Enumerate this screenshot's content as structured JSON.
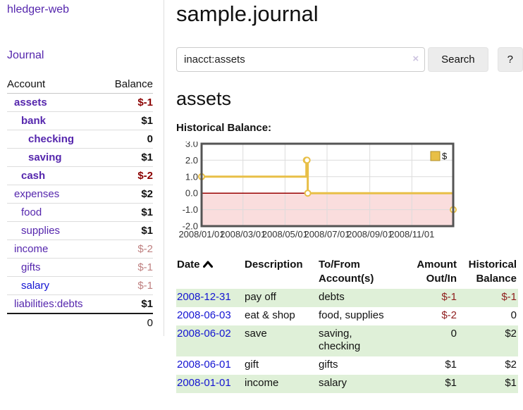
{
  "sidebar": {
    "brand": "hledger-web",
    "journal_label": "Journal",
    "accounts_header": {
      "account": "Account",
      "balance": "Balance"
    },
    "accounts": [
      {
        "name": "assets",
        "indent": 1,
        "bold": true,
        "balance": "$-1",
        "balance_style": "neg-strong",
        "link_style": "purple"
      },
      {
        "name": "bank",
        "indent": 2,
        "bold": true,
        "balance": "$1",
        "balance_style": "",
        "link_style": "purple"
      },
      {
        "name": "checking",
        "indent": 3,
        "bold": true,
        "balance": "0",
        "balance_style": "",
        "link_style": "purple"
      },
      {
        "name": "saving",
        "indent": 3,
        "bold": true,
        "balance": "$1",
        "balance_style": "",
        "link_style": "purple"
      },
      {
        "name": "cash",
        "indent": 2,
        "bold": true,
        "balance": "$-2",
        "balance_style": "neg-strong",
        "link_style": "purple"
      },
      {
        "name": "expenses",
        "indent": 1,
        "bold": false,
        "balance": "$2",
        "balance_style": "",
        "link_style": "purple"
      },
      {
        "name": "food",
        "indent": 2,
        "bold": false,
        "balance": "$1",
        "balance_style": "",
        "link_style": "purple"
      },
      {
        "name": "supplies",
        "indent": 2,
        "bold": false,
        "balance": "$1",
        "balance_style": "",
        "link_style": "purple"
      },
      {
        "name": "income",
        "indent": 1,
        "bold": false,
        "balance": "$-2",
        "balance_style": "neg-soft",
        "link_style": "purple"
      },
      {
        "name": "gifts",
        "indent": 2,
        "bold": false,
        "balance": "$-1",
        "balance_style": "neg-soft",
        "link_style": "purple"
      },
      {
        "name": "salary",
        "indent": 2,
        "bold": false,
        "balance": "$-1",
        "balance_style": "neg-soft",
        "link_style": "blue"
      },
      {
        "name": "liabilities:debts",
        "indent": 1,
        "bold": false,
        "balance": "$1",
        "balance_style": "",
        "link_style": "purple"
      }
    ],
    "total": "0"
  },
  "main": {
    "title": "sample.journal",
    "search": {
      "value": "inacct:assets",
      "clear_icon": "×",
      "button_label": "Search",
      "help_label": "?"
    },
    "account_heading": "assets",
    "chart_title": "Historical Balance:"
  },
  "chart_data": {
    "type": "line",
    "style": "step-after",
    "title": "Historical Balance",
    "series": [
      {
        "name": "$",
        "points": [
          [
            "2008-01-01",
            1
          ],
          [
            "2008-06-01",
            2
          ],
          [
            "2008-06-02",
            2
          ],
          [
            "2008-06-03",
            0
          ],
          [
            "2008-12-31",
            -1
          ]
        ]
      }
    ],
    "x_range": [
      "2008-01-01",
      "2008-12-31"
    ],
    "x_ticks": [
      "2008/01/01",
      "2008/03/01",
      "2008/05/01",
      "2008/07/01",
      "2008/09/01",
      "2008/11/01"
    ],
    "y_ticks": [
      "3.0",
      "2.0",
      "1.0",
      "0.0",
      "-1.0",
      "-2.0"
    ],
    "ylim": [
      -2,
      3
    ],
    "grid": true,
    "legend_position": "top-right",
    "legend": [
      {
        "label": "$",
        "color": "#e8bf47"
      }
    ],
    "line_color": "#e8bf47",
    "marker_fill": "#ffffff",
    "zero_line_color": "#990000",
    "negative_region_color": "#fadddd",
    "gridline_color": "#dcdcdc",
    "border_color": "#545454",
    "label_color": "#333333"
  },
  "register": {
    "headers": {
      "date": "Date",
      "description": "Description",
      "accounts": "To/From Account(s)",
      "amount": "Amount Out/In",
      "balance": "Historical Balance"
    },
    "rows": [
      {
        "date": "2008-12-31",
        "description": "pay off",
        "accounts": [
          "debts"
        ],
        "amount": "$-1",
        "amount_neg": true,
        "balance": "$-1",
        "balance_neg": true,
        "shaded": true
      },
      {
        "date": "2008-06-03",
        "description": "eat & shop",
        "accounts": [
          "food, supplies"
        ],
        "amount": "$-2",
        "amount_neg": true,
        "balance": "0",
        "balance_neg": false,
        "shaded": false
      },
      {
        "date": "2008-06-02",
        "description": "save",
        "accounts": [
          "saving,",
          "checking"
        ],
        "amount": "0",
        "amount_neg": false,
        "balance": "$2",
        "balance_neg": false,
        "shaded": true
      },
      {
        "date": "2008-06-01",
        "description": "gift",
        "accounts": [
          "gifts"
        ],
        "amount": "$1",
        "amount_neg": false,
        "balance": "$2",
        "balance_neg": false,
        "shaded": false
      },
      {
        "date": "2008-01-01",
        "description": "income",
        "accounts": [
          "salary"
        ],
        "amount": "$1",
        "amount_neg": false,
        "balance": "$1",
        "balance_neg": false,
        "shaded": true
      }
    ]
  }
}
